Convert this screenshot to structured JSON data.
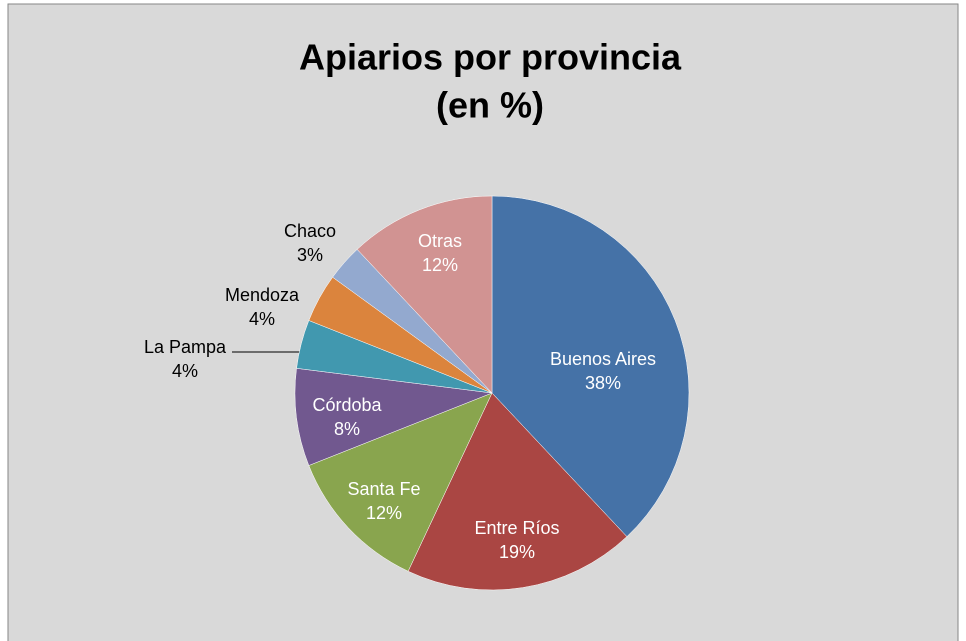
{
  "chart_data": {
    "type": "pie",
    "title": [
      "Apiarios por provincia",
      "(en %)"
    ],
    "categories": [
      "Buenos Aires",
      "Entre Ríos",
      "Santa Fe",
      "Córdoba",
      "La Pampa",
      "Mendoza",
      "Chaco",
      "Otras"
    ],
    "values": [
      38,
      19,
      12,
      8,
      4,
      4,
      3,
      12
    ],
    "value_labels": [
      "38%",
      "19%",
      "12%",
      "8%",
      "4%",
      "4%",
      "3%",
      "12%"
    ],
    "colors": [
      "#4572a7",
      "#aa4643",
      "#89a54e",
      "#71588f",
      "#4198af",
      "#db843d",
      "#93a9cf",
      "#d19392"
    ]
  }
}
